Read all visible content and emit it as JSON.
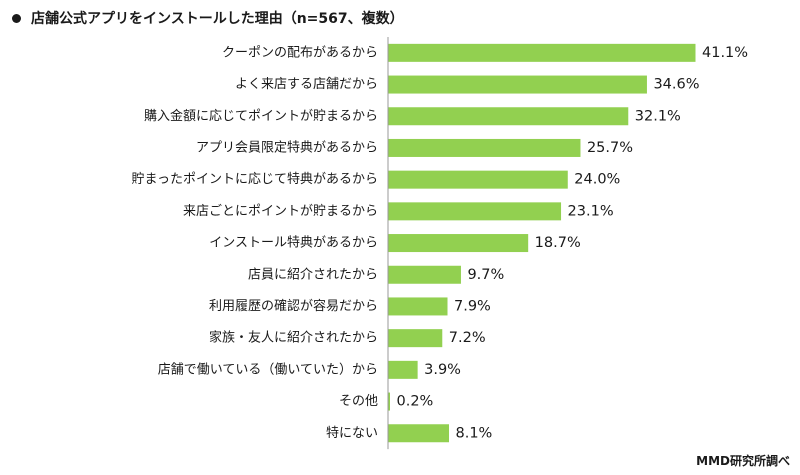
{
  "header": {
    "title": "店舗公式アプリをインストールした理由（n=567、複数）"
  },
  "footer": {
    "source": "MMD研究所調べ"
  },
  "colors": {
    "bar": "#92d050",
    "axis": "#999999"
  },
  "chart_data": {
    "type": "bar",
    "orientation": "horizontal",
    "title": "店舗公式アプリをインストールした理由（n=567、複数）",
    "categories": [
      "クーポンの配布があるから",
      "よく来店する店舗だから",
      "購入金額に応じてポイントが貯まるから",
      "アプリ会員限定特典があるから",
      "貯まったポイントに応じて特典があるから",
      "来店ごとにポイントが貯まるから",
      "インストール特典があるから",
      "店員に紹介されたから",
      "利用履歴の確認が容易だから",
      "家族・友人に紹介されたから",
      "店舗で働いている（働いていた）から",
      "その他",
      "特にない"
    ],
    "values": [
      41.1,
      34.6,
      32.1,
      25.7,
      24.0,
      23.1,
      18.7,
      9.7,
      7.9,
      7.2,
      3.9,
      0.2,
      8.1
    ],
    "value_labels": [
      "41.1%",
      "34.6%",
      "32.1%",
      "25.7%",
      "24.0%",
      "23.1%",
      "18.7%",
      "9.7%",
      "7.9%",
      "7.2%",
      "3.9%",
      "0.2%",
      "8.1%"
    ],
    "unit": "%",
    "xlim": [
      0,
      41.1
    ],
    "grid": false,
    "legend": "none"
  }
}
